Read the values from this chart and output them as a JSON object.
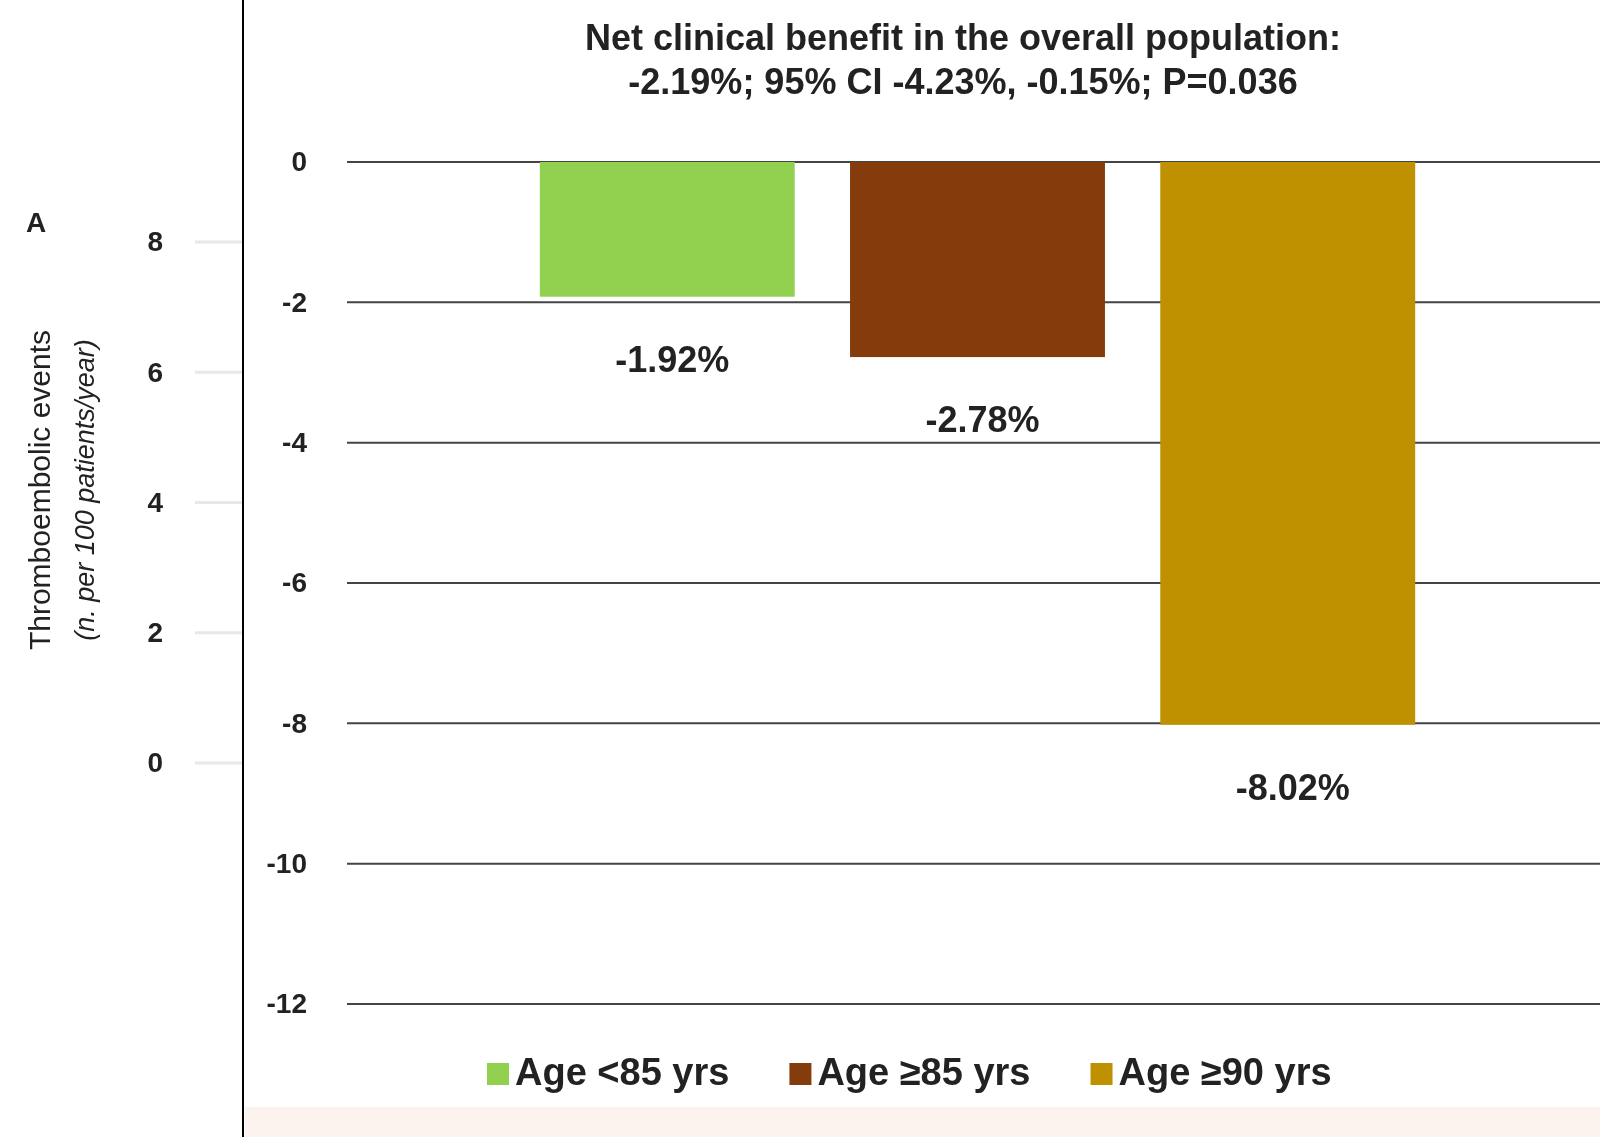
{
  "chart_data": {
    "type": "bar",
    "title": "Net clinical benefit in the overall population:\n-2.19%; 95% CI -4.23%, -0.15%; P=0.036",
    "categories": [
      null
    ],
    "series": [
      {
        "name": "Age <85 yrs",
        "color": "#92d050",
        "values": [
          -1.92
        ],
        "value_labels": [
          "-1.92%"
        ]
      },
      {
        "name": "Age ≥85 yrs",
        "color": "#843c0c",
        "values": [
          -2.78
        ],
        "value_labels": [
          "-2.78%"
        ]
      },
      {
        "name": "Age ≥90 yrs",
        "color": "#bf9000",
        "values": [
          -8.02
        ],
        "value_labels": [
          "-8.02%"
        ]
      }
    ],
    "ylim": [
      -12,
      0
    ],
    "yticks": [
      0,
      -2,
      -4,
      -6,
      -8,
      -10,
      -12
    ],
    "y2label": "Thromboembolic events\n(n. per 100 patients/year)",
    "y2lim": [
      0,
      8
    ],
    "y2ticks": [
      0,
      2,
      4,
      6,
      8
    ],
    "annotations": [
      "A"
    ],
    "grid": "y",
    "legend": "bottom"
  }
}
